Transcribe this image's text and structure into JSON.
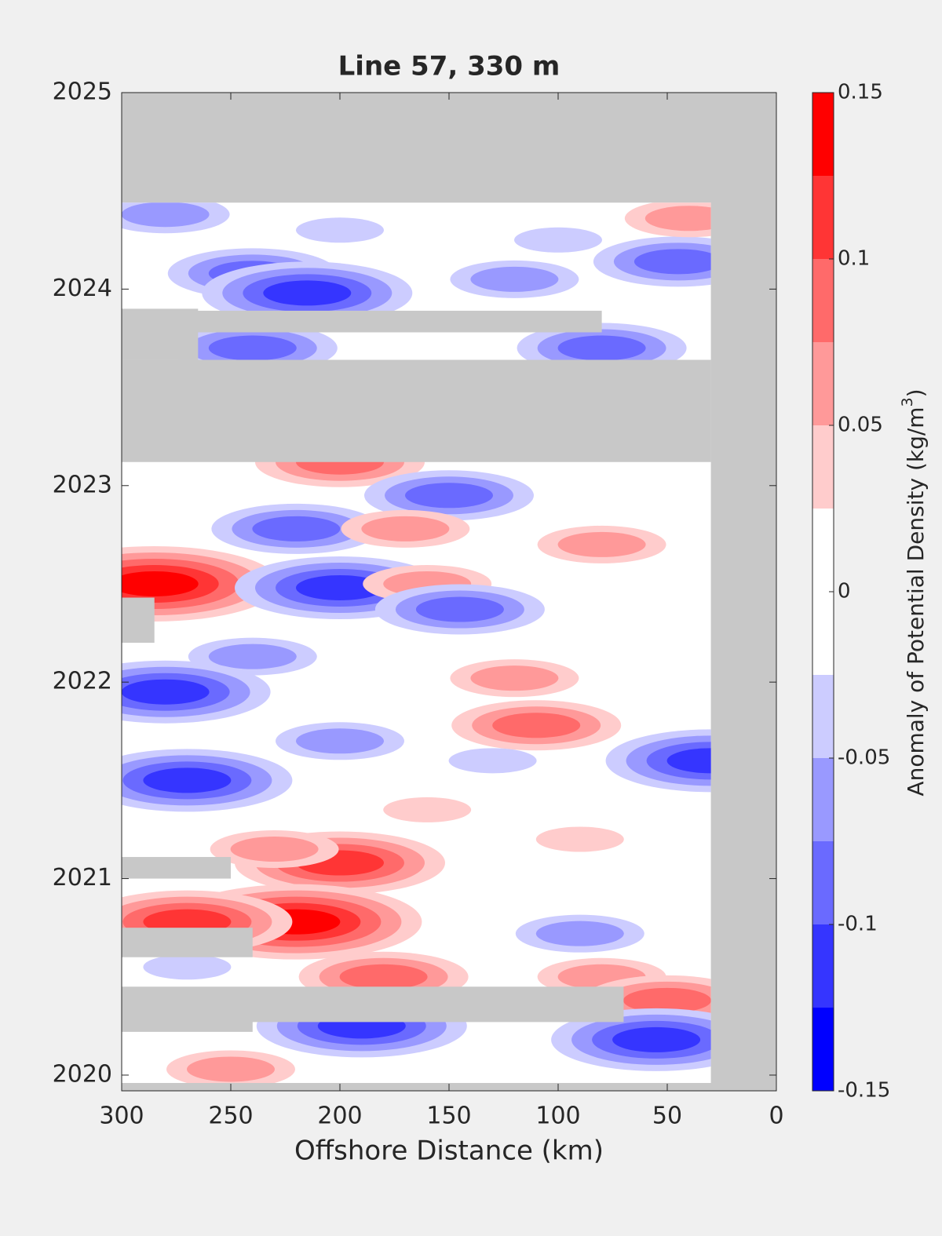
{
  "chart_data": {
    "type": "contour",
    "title": "Line 57, 330 m",
    "xlabel": "Offshore Distance (km)",
    "colorbar_label": [
      "Anomaly of Potential Density (kg/m",
      "3",
      ")"
    ],
    "xlim": [
      300,
      0
    ],
    "xticks": [
      300,
      250,
      200,
      150,
      100,
      50,
      0
    ],
    "ylim": [
      2019.92,
      2025
    ],
    "yticks": [
      2020,
      2021,
      2022,
      2023,
      2024,
      2025
    ],
    "clim": [
      -0.15,
      0.15
    ],
    "cticks": [
      0.15,
      0.1,
      0.05,
      0,
      -0.05,
      -0.1,
      -0.15
    ],
    "colors": [
      "#ff0000",
      "#ff3535",
      "#ff6a6a",
      "#ff9999",
      "#ffcccc",
      "#ffffff",
      "#ffffff",
      "#ccccff",
      "#9999ff",
      "#6a6aff",
      "#3535ff",
      "#0000ff"
    ],
    "nodata_color": "#c8c8c8",
    "data_extent": {
      "x": [
        300,
        30
      ],
      "y": [
        2019.96,
        2024.44
      ]
    },
    "gaps": [
      {
        "x": [
          300,
          30
        ],
        "y": [
          2023.12,
          2023.64
        ]
      },
      {
        "x": [
          300,
          265
        ],
        "y": [
          2023.64,
          2023.9
        ]
      },
      {
        "x": [
          300,
          80
        ],
        "y": [
          2023.78,
          2023.89
        ]
      },
      {
        "x": [
          300,
          285
        ],
        "y": [
          2022.2,
          2022.43
        ]
      },
      {
        "x": [
          300,
          250
        ],
        "y": [
          2021.0,
          2021.11
        ]
      },
      {
        "x": [
          300,
          240
        ],
        "y": [
          2020.6,
          2020.75
        ]
      },
      {
        "x": [
          300,
          70
        ],
        "y": [
          2020.27,
          2020.45
        ]
      },
      {
        "x": [
          300,
          240
        ],
        "y": [
          2020.22,
          2020.3
        ]
      }
    ],
    "anomalies": [
      {
        "x": 280,
        "y": 2024.38,
        "value": -0.07
      },
      {
        "x": 200,
        "y": 2024.3,
        "value": -0.03
      },
      {
        "x": 100,
        "y": 2024.25,
        "value": -0.04
      },
      {
        "x": 240,
        "y": 2024.08,
        "value": -0.09
      },
      {
        "x": 215,
        "y": 2023.98,
        "value": -0.11
      },
      {
        "x": 120,
        "y": 2024.05,
        "value": -0.07
      },
      {
        "x": 45,
        "y": 2024.14,
        "value": -0.08
      },
      {
        "x": 40,
        "y": 2024.36,
        "value": 0.07
      },
      {
        "x": 240,
        "y": 2023.7,
        "value": -0.09
      },
      {
        "x": 80,
        "y": 2023.7,
        "value": -0.09
      },
      {
        "x": 200,
        "y": 2023.12,
        "value": 0.08
      },
      {
        "x": 150,
        "y": 2022.95,
        "value": -0.09
      },
      {
        "x": 220,
        "y": 2022.78,
        "value": -0.08
      },
      {
        "x": 170,
        "y": 2022.78,
        "value": 0.06
      },
      {
        "x": 80,
        "y": 2022.7,
        "value": 0.07
      },
      {
        "x": 285,
        "y": 2022.5,
        "value": 0.13
      },
      {
        "x": 200,
        "y": 2022.48,
        "value": -0.1
      },
      {
        "x": 160,
        "y": 2022.5,
        "value": 0.05
      },
      {
        "x": 145,
        "y": 2022.37,
        "value": -0.08
      },
      {
        "x": 240,
        "y": 2022.13,
        "value": -0.06
      },
      {
        "x": 280,
        "y": 2021.95,
        "value": -0.1
      },
      {
        "x": 120,
        "y": 2022.02,
        "value": 0.05
      },
      {
        "x": 200,
        "y": 2021.7,
        "value": -0.07
      },
      {
        "x": 110,
        "y": 2021.78,
        "value": 0.08
      },
      {
        "x": 30,
        "y": 2021.6,
        "value": -0.1
      },
      {
        "x": 270,
        "y": 2021.5,
        "value": -0.1
      },
      {
        "x": 130,
        "y": 2021.6,
        "value": -0.04
      },
      {
        "x": 160,
        "y": 2021.35,
        "value": 0.04
      },
      {
        "x": 200,
        "y": 2021.08,
        "value": 0.1
      },
      {
        "x": 230,
        "y": 2021.15,
        "value": 0.06
      },
      {
        "x": 90,
        "y": 2021.2,
        "value": 0.04
      },
      {
        "x": 220,
        "y": 2020.78,
        "value": 0.14
      },
      {
        "x": 270,
        "y": 2020.78,
        "value": 0.12
      },
      {
        "x": 90,
        "y": 2020.72,
        "value": -0.07
      },
      {
        "x": 180,
        "y": 2020.5,
        "value": 0.09
      },
      {
        "x": 80,
        "y": 2020.5,
        "value": 0.07
      },
      {
        "x": 50,
        "y": 2020.38,
        "value": 0.09
      },
      {
        "x": 190,
        "y": 2020.25,
        "value": -0.1
      },
      {
        "x": 55,
        "y": 2020.18,
        "value": -0.1
      },
      {
        "x": 270,
        "y": 2020.55,
        "value": -0.03
      },
      {
        "x": 250,
        "y": 2020.03,
        "value": 0.05
      }
    ]
  }
}
